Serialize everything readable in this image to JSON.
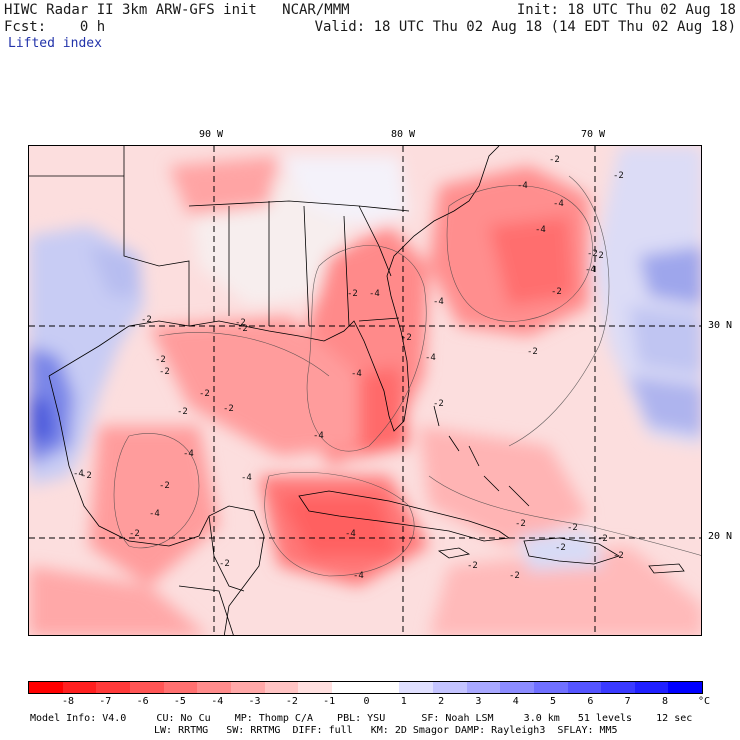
{
  "header": {
    "line1_left": "HIWC Radar II 3km ARW-GFS init   NCAR/MMM",
    "line1_right": "Init: 18 UTC Thu 02 Aug 18",
    "line2_left": "Fcst:    0 h",
    "line2_right": "Valid: 18 UTC Thu 02 Aug 18 (14 EDT Thu 02 Aug 18)",
    "field_name": "Lifted index"
  },
  "map": {
    "lon_labels": [
      "90 W",
      "80 W",
      "70 W"
    ],
    "lat_labels": [
      "30 N",
      "20 N"
    ],
    "contour_labels": [
      "-2",
      "-4",
      "-2",
      "-4",
      "-2",
      "-4",
      "-2",
      "-4",
      "-2",
      "-2",
      "-4",
      "-2",
      "-4",
      "-2",
      "-4",
      "-2",
      "-4",
      "-2",
      "-4",
      "-2",
      "-2",
      "-4",
      "-2",
      "-2",
      "-2",
      "-2",
      "-4",
      "-2",
      "-2",
      "-2",
      "-4",
      "-2",
      "-2",
      "-2",
      "-4",
      "-2",
      "-2",
      "-4",
      "-2",
      "-2",
      "-2",
      "-4",
      "-2"
    ]
  },
  "colorbar": {
    "unit": "°C",
    "tick_labels": [
      "-8",
      "-7",
      "-6",
      "-5",
      "-4",
      "-3",
      "-2",
      "-1",
      "0",
      "1",
      "2",
      "3",
      "4",
      "5",
      "6",
      "7",
      "8"
    ],
    "colors": [
      "#ff0000",
      "#ff2020",
      "#ff3a3a",
      "#ff5555",
      "#ff7070",
      "#ff8c8c",
      "#ffa8a8",
      "#ffc4c4",
      "#ffe0e0",
      "#ffffff",
      "#ffffff",
      "#e0e0ff",
      "#c4c4ff",
      "#a8a8ff",
      "#8c8cff",
      "#7070ff",
      "#5555ff",
      "#3a3aff",
      "#2020ff",
      "#0000ff"
    ]
  },
  "footer": {
    "line1": "Model Info: V4.0     CU: No Cu    MP: Thomp C/A    PBL: YSU      SF: Noah LSM     3.0 km   51 levels    12 sec",
    "line2": "LW: RRTMG   SW: RRTMG  DIFF: full   KM: 2D Smagor DAMP: Rayleigh3  SFLAY: MM5"
  }
}
